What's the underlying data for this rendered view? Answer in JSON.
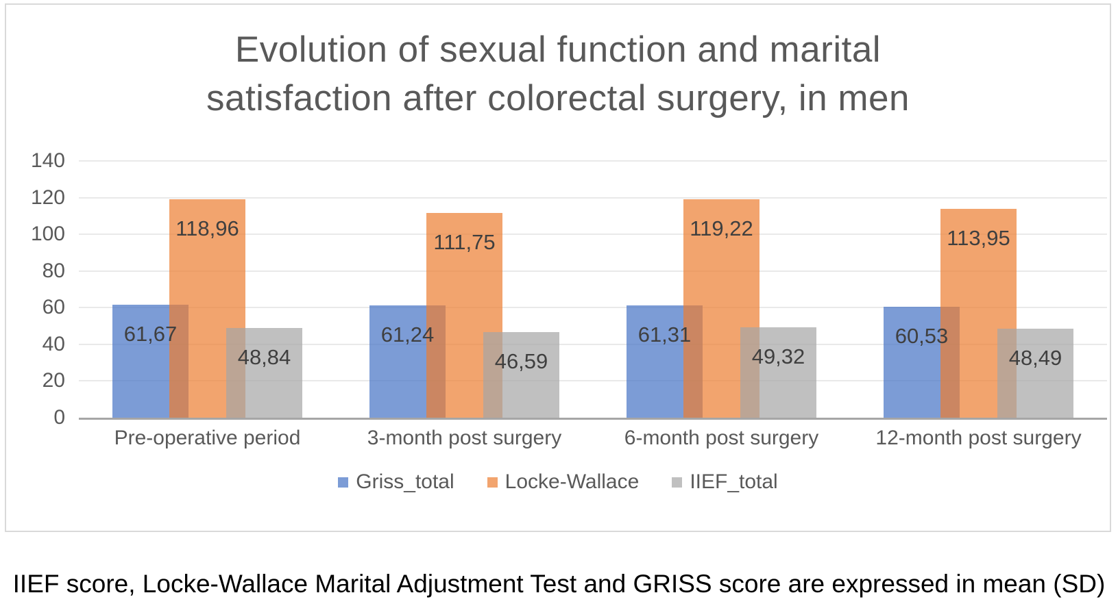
{
  "caption": "IIEF score, Locke-Wallace Marital Adjustment Test and GRISS score are expressed in mean (SD)",
  "chart_data": {
    "type": "bar",
    "title": "Evolution of sexual function and marital satisfaction after colorectal surgery, in men",
    "title_lines": [
      "Evolution of sexual function and marital",
      "satisfaction after colorectal surgery, in men"
    ],
    "categories": [
      "Pre-operative period",
      "3-month post surgery",
      "6-month post surgery",
      "12-month post surgery"
    ],
    "series": [
      {
        "name": "Griss_total",
        "color": "#4472C4",
        "fill_opacity": 0.7,
        "values": [
          61.67,
          61.24,
          61.31,
          60.53
        ],
        "labels": [
          "61,67",
          "61,24",
          "61,31",
          "60,53"
        ]
      },
      {
        "name": "Locke-Wallace",
        "color": "#ED7D31",
        "fill_opacity": 0.7,
        "values": [
          118.96,
          111.75,
          119.22,
          113.95
        ],
        "labels": [
          "118,96",
          "111,75",
          "119,22",
          "113,95"
        ]
      },
      {
        "name": "IIEF_total",
        "color": "#A5A5A5",
        "fill_opacity": 0.7,
        "values": [
          48.84,
          46.59,
          49.32,
          48.49
        ],
        "labels": [
          "48,84",
          "46,59",
          "49,32",
          "48,49"
        ]
      }
    ],
    "ylim": [
      0,
      140
    ],
    "yticks": [
      0,
      20,
      40,
      60,
      80,
      100,
      120,
      140
    ],
    "grid": true,
    "legend_position": "bottom",
    "title_color": "#595959",
    "axis_text_color": "#595959",
    "data_label_color": "#3F3F3F",
    "gridline_color": "#E9E9E9",
    "axis_line_color": "#A6A6A6",
    "frame_border_color": "#D9D9D9"
  }
}
